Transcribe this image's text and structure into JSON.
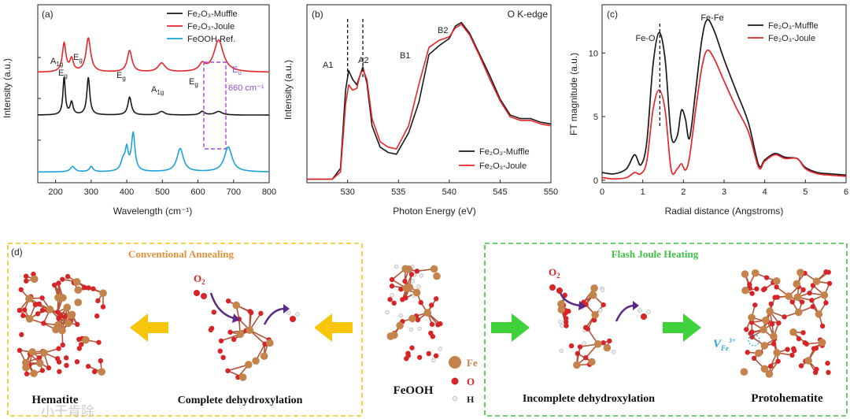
{
  "chart_data": [
    {
      "type": "line",
      "panel_label": "(a)",
      "xlabel": "Wavelength (cm⁻¹)",
      "ylabel": "Intensity (a.u.)",
      "xlim": [
        150,
        800
      ],
      "xticks": [
        200,
        300,
        400,
        500,
        600,
        700,
        800
      ],
      "legend": [
        "Fe₂O₃-Muffle",
        "Fe₂O₃-Joule",
        "FeOOH Ref."
      ],
      "series": [
        {
          "name": "Fe2O3-Joule",
          "color": "#e8262a",
          "baseline": 0.62,
          "peaks": [
            [
              224,
              0.16,
              6
            ],
            [
              245,
              0.07,
              6
            ],
            [
              292,
              0.19,
              8
            ],
            [
              408,
              0.12,
              8
            ],
            [
              498,
              0.05,
              12
            ],
            [
              612,
              0.04,
              10
            ],
            [
              658,
              0.18,
              16
            ]
          ]
        },
        {
          "name": "Fe2O3-Muffle",
          "color": "#1a1a1a",
          "baseline": 0.38,
          "peaks": [
            [
              224,
              0.21,
              4
            ],
            [
              245,
              0.07,
              5
            ],
            [
              292,
              0.21,
              5
            ],
            [
              408,
              0.1,
              6
            ],
            [
              498,
              0.02,
              10
            ],
            [
              612,
              0.02,
              8
            ],
            [
              658,
              0.02,
              12
            ]
          ]
        },
        {
          "name": "FeOOH Ref.",
          "color": "#1ba3d9",
          "baseline": 0.06,
          "peaks": [
            [
              248,
              0.03,
              8
            ],
            [
              300,
              0.03,
              6
            ],
            [
              390,
              0.06,
              8
            ],
            [
              400,
              0.11,
              5
            ],
            [
              418,
              0.21,
              6
            ],
            [
              550,
              0.13,
              11
            ],
            [
              685,
              0.14,
              13
            ]
          ]
        }
      ],
      "annotations": {
        "peaks_joule": [
          {
            "main": "A",
            "sub": "1g",
            "x": 222
          },
          {
            "main": "E",
            "sub": "g",
            "x": 246
          },
          {
            "main": "E",
            "sub": "g",
            "x": 292
          },
          {
            "main": "E",
            "sub": "g",
            "x": 406
          },
          {
            "main": "A",
            "sub": "1g",
            "x": 497
          },
          {
            "main": "E",
            "sub": "g",
            "x": 612
          }
        ],
        "eu_label_main": "E",
        "eu_label_sub": "u",
        "eu_wavenumber": "660 cm⁻¹",
        "eu_box_color": "#9b4fd1"
      }
    },
    {
      "type": "line",
      "panel_label": "(b)",
      "title": "O K-edge",
      "xlabel": "Photon Energy (eV)",
      "ylabel": "Intensity (a.u.)",
      "xlim": [
        526,
        550
      ],
      "xticks": [
        530,
        535,
        540,
        545,
        550
      ],
      "legend": [
        "Fe₂O₃-Muffle",
        "Fe₂O₃-Joule"
      ],
      "series": [
        {
          "name": "Fe2O3-Muffle",
          "color": "#1a1a1a",
          "points": [
            [
              526,
              0.02
            ],
            [
              528.5,
              0.02
            ],
            [
              529.3,
              0.08
            ],
            [
              529.8,
              0.52
            ],
            [
              530.1,
              0.63
            ],
            [
              530.5,
              0.58
            ],
            [
              530.9,
              0.55
            ],
            [
              531.2,
              0.6
            ],
            [
              531.5,
              0.65
            ],
            [
              531.9,
              0.56
            ],
            [
              532.4,
              0.32
            ],
            [
              533.2,
              0.2
            ],
            [
              534.0,
              0.17
            ],
            [
              534.8,
              0.16
            ],
            [
              536.0,
              0.28
            ],
            [
              537.0,
              0.45
            ],
            [
              538.0,
              0.72
            ],
            [
              539.0,
              0.77
            ],
            [
              540.0,
              0.81
            ],
            [
              540.6,
              0.88
            ],
            [
              541.2,
              0.9
            ],
            [
              542.0,
              0.84
            ],
            [
              543.0,
              0.72
            ],
            [
              544.0,
              0.6
            ],
            [
              545.0,
              0.47
            ],
            [
              546.0,
              0.38
            ],
            [
              547.0,
              0.36
            ],
            [
              548.0,
              0.36
            ],
            [
              549.0,
              0.34
            ],
            [
              550,
              0.33
            ]
          ]
        },
        {
          "name": "Fe2O3-Joule",
          "color": "#e8262a",
          "points": [
            [
              526,
              0.02
            ],
            [
              528.5,
              0.02
            ],
            [
              529.3,
              0.06
            ],
            [
              529.8,
              0.44
            ],
            [
              530.1,
              0.55
            ],
            [
              530.5,
              0.52
            ],
            [
              530.9,
              0.53
            ],
            [
              531.2,
              0.6
            ],
            [
              531.5,
              0.64
            ],
            [
              531.9,
              0.58
            ],
            [
              532.4,
              0.36
            ],
            [
              533.2,
              0.23
            ],
            [
              534.0,
              0.2
            ],
            [
              534.8,
              0.19
            ],
            [
              536.0,
              0.32
            ],
            [
              537.0,
              0.55
            ],
            [
              538.0,
              0.76
            ],
            [
              539.0,
              0.8
            ],
            [
              540.0,
              0.82
            ],
            [
              540.6,
              0.87
            ],
            [
              541.2,
              0.89
            ],
            [
              542.0,
              0.83
            ],
            [
              543.0,
              0.71
            ],
            [
              544.0,
              0.58
            ],
            [
              545.0,
              0.46
            ],
            [
              546.0,
              0.37
            ],
            [
              547.0,
              0.35
            ],
            [
              548.0,
              0.35
            ],
            [
              549.0,
              0.33
            ],
            [
              550,
              0.32
            ]
          ]
        }
      ],
      "annotations": [
        {
          "text": "A1",
          "x": 529.1
        },
        {
          "text": "A2",
          "x": 532.3
        },
        {
          "text": "B1",
          "x": 536.6
        },
        {
          "text": "B2",
          "x": 540.1
        }
      ],
      "dashed_lines_at": [
        530.0,
        531.5
      ]
    },
    {
      "type": "line",
      "panel_label": "(c)",
      "xlabel": "Radial distance (Angstroms)",
      "ylabel": "FT magnitude (a.u.)",
      "xlim": [
        0,
        6
      ],
      "ylim": [
        -0.2,
        13.8
      ],
      "xticks": [
        0,
        1,
        2,
        3,
        4,
        5,
        6
      ],
      "yticks": [
        0,
        5,
        10
      ],
      "legend": [
        "Fe₂O₃-Muffle",
        "Fe₂O₃-Joule"
      ],
      "series": [
        {
          "name": "Fe2O3-Muffle",
          "color": "#1a1a1a",
          "points": [
            [
              0,
              0.6
            ],
            [
              0.3,
              0.5
            ],
            [
              0.6,
              0.9
            ],
            [
              0.8,
              2.0
            ],
            [
              0.95,
              1.2
            ],
            [
              1.1,
              3.0
            ],
            [
              1.25,
              9.0
            ],
            [
              1.4,
              11.6
            ],
            [
              1.55,
              9.5
            ],
            [
              1.7,
              3.5
            ],
            [
              1.85,
              3.5
            ],
            [
              1.95,
              5.5
            ],
            [
              2.05,
              4.8
            ],
            [
              2.15,
              3.3
            ],
            [
              2.3,
              7.0
            ],
            [
              2.45,
              11.0
            ],
            [
              2.58,
              12.6
            ],
            [
              2.75,
              11.8
            ],
            [
              3.0,
              9.5
            ],
            [
              3.3,
              7.0
            ],
            [
              3.6,
              4.5
            ],
            [
              3.85,
              1.2
            ],
            [
              4.0,
              1.6
            ],
            [
              4.25,
              2.1
            ],
            [
              4.5,
              1.8
            ],
            [
              4.8,
              1.7
            ],
            [
              5.0,
              1.0
            ],
            [
              5.3,
              0.6
            ],
            [
              5.6,
              0.5
            ],
            [
              6,
              0.4
            ]
          ]
        },
        {
          "name": "Fe2O3-Joule",
          "color": "#e8262a",
          "points": [
            [
              0,
              0.2
            ],
            [
              0.3,
              0.1
            ],
            [
              0.6,
              0.2
            ],
            [
              0.8,
              0.6
            ],
            [
              0.95,
              0.5
            ],
            [
              1.1,
              1.5
            ],
            [
              1.25,
              5.5
            ],
            [
              1.4,
              7.1
            ],
            [
              1.55,
              5.5
            ],
            [
              1.7,
              0.8
            ],
            [
              1.85,
              0.9
            ],
            [
              1.95,
              1.3
            ],
            [
              2.05,
              0.8
            ],
            [
              2.15,
              1.8
            ],
            [
              2.3,
              5.5
            ],
            [
              2.45,
              8.8
            ],
            [
              2.58,
              10.2
            ],
            [
              2.75,
              9.6
            ],
            [
              3.0,
              7.8
            ],
            [
              3.3,
              5.7
            ],
            [
              3.6,
              3.8
            ],
            [
              3.85,
              1.0
            ],
            [
              4.0,
              1.5
            ],
            [
              4.25,
              2.0
            ],
            [
              4.5,
              1.7
            ],
            [
              4.8,
              1.7
            ],
            [
              5.0,
              0.9
            ],
            [
              5.3,
              0.5
            ],
            [
              5.6,
              0.4
            ],
            [
              6,
              0.3
            ]
          ]
        }
      ],
      "annotations": [
        {
          "text": "Fe-O",
          "x": 1.4
        },
        {
          "text": "Fe-Fe",
          "x": 2.58
        }
      ],
      "dashed_line_at": 1.42
    }
  ],
  "schematic": {
    "panel_label": "(d)",
    "conventional_title": "Conventional Annealing",
    "flash_title": "Flash Joule Heating",
    "hematite_label": "Hematite",
    "complete_label": "Complete dehydroxylation",
    "feooh_label": "FeOOH",
    "incomplete_label": "Incomplete dehydroxylation",
    "protohematite_label": "Protohematite",
    "o2_label_main": "O",
    "o2_label_sub": "2",
    "vacancy_main": "V",
    "vacancy_sub": "Fe",
    "vacancy_sup": "3+",
    "legend_fe": "Fe",
    "legend_o": "O",
    "legend_h": "H",
    "watermark": "小干肯除",
    "colors": {
      "conventional_box": "#f0c319",
      "conventional_title": "#e8913a",
      "flash_box": "#3fc244",
      "flash_title": "#3fc244",
      "arrow_yellow": "#f6c50c",
      "arrow_green": "#3fd23a",
      "fe_atom": "#c4834a",
      "o_atom": "#d62427",
      "h_atom": "#ececec",
      "purple_arrow": "#5c2a86",
      "vacancy": "#2aa6dc"
    }
  }
}
